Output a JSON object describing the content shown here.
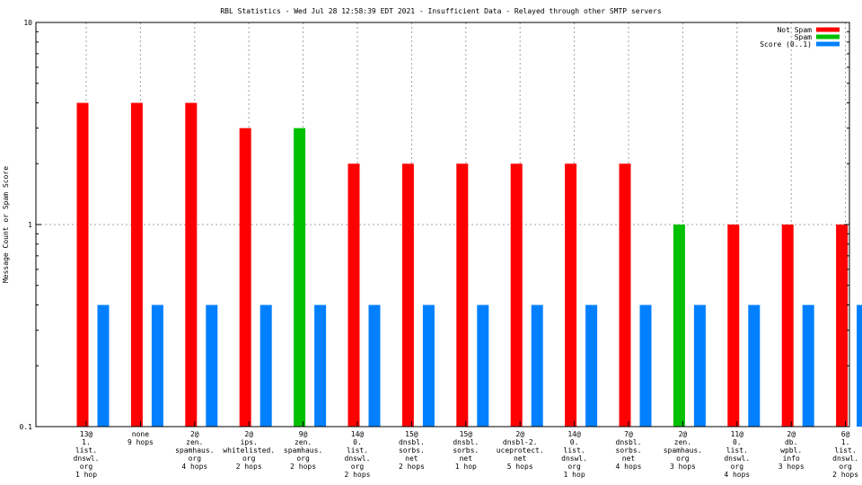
{
  "chart_data": {
    "type": "bar",
    "title": "RBL Statistics - Wed Jul 28 12:58:39 EDT 2021 - Insufficient Data - Relayed through other SMTP servers",
    "ylabel": "Message Count or Spam Score",
    "xlabel": "",
    "yscale": "log",
    "ylim": [
      0.1,
      10
    ],
    "yticks": [
      "0.1",
      "1",
      "10"
    ],
    "grid": true,
    "legend_position": "top-right",
    "categories": [
      [
        "13@",
        "1.",
        "list.",
        "dnswl.",
        "org",
        "1 hop"
      ],
      [
        "none",
        "9 hops"
      ],
      [
        "2@",
        "zen.",
        "spamhaus.",
        "org",
        "4 hops"
      ],
      [
        "2@",
        "ips.",
        "whitelisted.",
        "org",
        "2 hops"
      ],
      [
        "9@",
        "zen.",
        "spamhaus.",
        "org",
        "2 hops"
      ],
      [
        "14@",
        "0.",
        "list.",
        "dnswl.",
        "org",
        "2 hops"
      ],
      [
        "15@",
        "dnsbl.",
        "sorbs.",
        "net",
        "2 hops"
      ],
      [
        "15@",
        "dnsbl.",
        "sorbs.",
        "net",
        "1 hop"
      ],
      [
        "2@",
        "dnsbl-2.",
        "uceprotect.",
        "net",
        "5 hops"
      ],
      [
        "14@",
        "0.",
        "list.",
        "dnswl.",
        "org",
        "1 hop"
      ],
      [
        "7@",
        "dnsbl.",
        "sorbs.",
        "net",
        "4 hops"
      ],
      [
        "2@",
        "zen.",
        "spamhaus.",
        "org",
        "3 hops"
      ],
      [
        "11@",
        "0.",
        "list.",
        "dnswl.",
        "org",
        "4 hops"
      ],
      [
        "2@",
        "db.",
        "wpbl.",
        "info",
        "3 hops"
      ],
      [
        "6@",
        "1.",
        "list.",
        "dnswl.",
        "org",
        "2 hops"
      ]
    ],
    "series": [
      {
        "name": "Not Spam",
        "color": "#ff0000",
        "values": [
          4,
          4,
          4,
          3,
          null,
          2,
          2,
          2,
          2,
          2,
          2,
          null,
          1,
          1,
          1
        ]
      },
      {
        "name": "Spam",
        "color": "#00c000",
        "values": [
          null,
          null,
          null,
          null,
          3,
          null,
          null,
          null,
          null,
          null,
          null,
          1,
          null,
          null,
          null
        ]
      },
      {
        "name": "Score (0..1)",
        "color": "#0080ff",
        "values": [
          0.4,
          0.4,
          0.4,
          0.4,
          0.4,
          0.4,
          0.4,
          0.4,
          0.4,
          0.4,
          0.4,
          0.4,
          0.4,
          0.4,
          0.4
        ]
      }
    ]
  }
}
